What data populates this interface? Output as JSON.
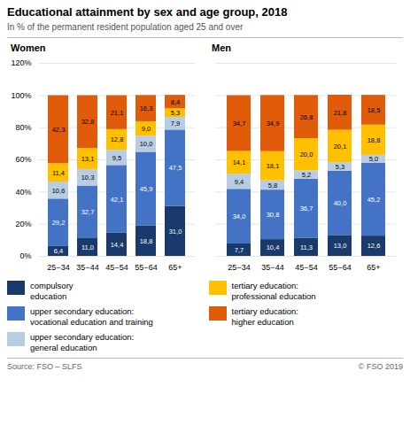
{
  "title": "Educational attainment by sex and age group, 2018",
  "subtitle": "In % of the permanent resident population aged 25 and over",
  "annotations": [
    "Source: FSO – SLFS",
    "© FSO 2019"
  ],
  "chart_data": [
    {
      "type": "bar",
      "stacked": true,
      "title": "Women",
      "categories": [
        "25−34",
        "35−44",
        "45−54",
        "55−64",
        "65+"
      ],
      "series": [
        {
          "name": "compulsory\neducation",
          "color": "#1a3a6b",
          "values": [
            6.4,
            11.0,
            14.4,
            18.8,
            31.0
          ],
          "value_labels": [
            "6,4",
            "11,0",
            "14,4",
            "18,8",
            "31,0"
          ]
        },
        {
          "name": "upper secondary education:\nvocational education and training",
          "color": "#4472c4",
          "values": [
            29.2,
            32.7,
            42.1,
            45.9,
            47.5
          ],
          "value_labels": [
            "29,2",
            "32,7",
            "42,1",
            "45,9",
            "47,5"
          ]
        },
        {
          "name": "upper secondary education:\ngeneral education",
          "color": "#b8cce4",
          "values": [
            10.6,
            10.3,
            9.5,
            10.0,
            7.9
          ],
          "value_labels": [
            "10,6",
            "10,3",
            "9,5",
            "10,0",
            "7,9"
          ]
        },
        {
          "name": "tertiary education:\nprofessional education",
          "color": "#ffc000",
          "values": [
            11.4,
            13.1,
            12.8,
            9.0,
            5.3
          ],
          "value_labels": [
            "11,4",
            "13,1",
            "12,8",
            "9,0",
            "5,3"
          ]
        },
        {
          "name": "tertiary education:\nhigher education",
          "color": "#e05c0a",
          "values": [
            42.3,
            32.8,
            21.1,
            16.3,
            8.4
          ],
          "value_labels": [
            "42,3",
            "32,8",
            "21,1",
            "16,3",
            "8,4"
          ]
        }
      ],
      "ylim": [
        0,
        120
      ],
      "yticks": [
        {
          "value": 0,
          "label": "0%"
        },
        {
          "value": 20,
          "label": "20%"
        },
        {
          "value": 40,
          "label": "40%"
        },
        {
          "value": 60,
          "label": "60%"
        },
        {
          "value": 80,
          "label": "80%"
        },
        {
          "value": 100,
          "label": "100%"
        },
        {
          "value": 120,
          "label": "120%"
        }
      ],
      "grid": true,
      "data_labels": true,
      "legend": "bottom"
    },
    {
      "type": "bar",
      "stacked": true,
      "title": "Men",
      "categories": [
        "25−34",
        "35−44",
        "45−54",
        "55−64",
        "65+"
      ],
      "series": [
        {
          "name": "compulsory\neducation",
          "color": "#1a3a6b",
          "values": [
            7.7,
            10.4,
            11.3,
            13.0,
            12.6
          ],
          "value_labels": [
            "7,7",
            "10,4",
            "11,3",
            "13,0",
            "12,6"
          ]
        },
        {
          "name": "upper secondary education:\nvocational education and training",
          "color": "#4472c4",
          "values": [
            34.0,
            30.8,
            36.7,
            40.0,
            45.2
          ],
          "value_labels": [
            "34,0",
            "30,8",
            "36,7",
            "40,0",
            "45,2"
          ]
        },
        {
          "name": "upper secondary education:\ngeneral education",
          "color": "#b8cce4",
          "values": [
            9.4,
            5.8,
            5.2,
            5.3,
            5.0
          ],
          "value_labels": [
            "9,4",
            "5,8",
            "5,2",
            "5,3",
            "5,0"
          ]
        },
        {
          "name": "tertiary education:\nprofessional education",
          "color": "#ffc000",
          "values": [
            14.1,
            18.1,
            20.0,
            20.1,
            18.8
          ],
          "value_labels": [
            "14,1",
            "18,1",
            "20,0",
            "20,1",
            "18,8"
          ]
        },
        {
          "name": "tertiary education:\nhigher education",
          "color": "#e05c0a",
          "values": [
            34.7,
            34.9,
            26.8,
            21.8,
            18.5
          ],
          "value_labels": [
            "34,7",
            "34,9",
            "26,8",
            "21,8",
            "18,5"
          ]
        }
      ],
      "ylim": [
        0,
        120
      ],
      "yticks": [
        0,
        20,
        40,
        60,
        80,
        100,
        120
      ],
      "grid": true,
      "data_labels": true,
      "tick_labels": "x",
      "legend": "bottom"
    }
  ]
}
